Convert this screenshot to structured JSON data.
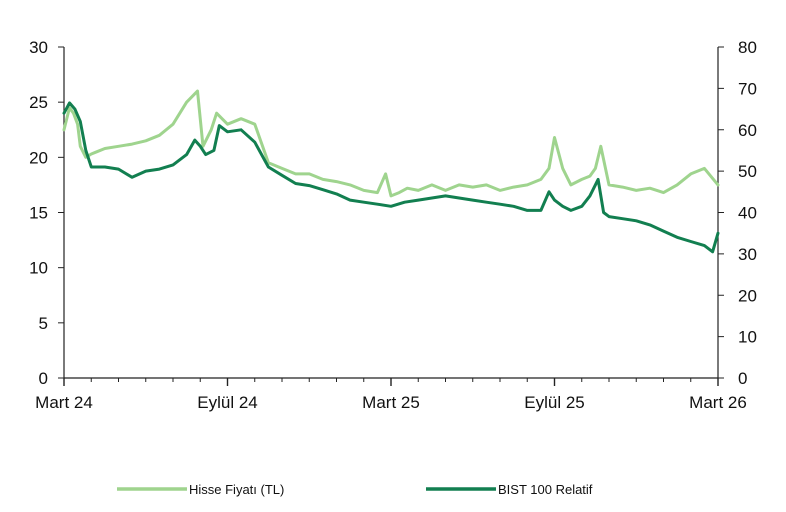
{
  "chart_data": {
    "type": "line",
    "title": "",
    "xlabel": "",
    "ylabel": "",
    "x_ticks": [
      "Mart 24",
      "Eylül 24",
      "Mart 25",
      "Eylül 25",
      "Mart 26"
    ],
    "y_left": {
      "ylim": [
        0,
        30
      ],
      "ticks": [
        "0",
        "5",
        "10",
        "15",
        "20",
        "25",
        "30"
      ]
    },
    "y_right": {
      "ylim": [
        0,
        80
      ],
      "ticks": [
        "0",
        "10",
        "20",
        "30",
        "40",
        "50",
        "60",
        "70",
        "80"
      ]
    },
    "grid": false,
    "legend_position": "bottom",
    "series": [
      {
        "name": "Hisse Fiyatı (TL)",
        "axis": "left",
        "color": "#9fd48e",
        "x": [
          0,
          0.2,
          0.35,
          0.5,
          0.6,
          0.8,
          1,
          1.2,
          1.5,
          2,
          2.5,
          3,
          3.5,
          4,
          4.5,
          4.9,
          5.1,
          5.4,
          5.6,
          6,
          6.5,
          7,
          7.5,
          8,
          8.5,
          9,
          9.5,
          10,
          10.5,
          11,
          11.5,
          11.8,
          12,
          12.3,
          12.6,
          13,
          13.5,
          14,
          14.5,
          15,
          15.5,
          16,
          16.5,
          17,
          17.5,
          17.8,
          18,
          18.3,
          18.6,
          19,
          19.3,
          19.5,
          19.7,
          20,
          20.5,
          21,
          21.5,
          22,
          22.5,
          23,
          23.5,
          24
        ],
        "values": [
          22.5,
          24.5,
          24,
          23,
          21,
          20,
          20.3,
          20.5,
          20.8,
          21.0,
          21.2,
          21.5,
          22.0,
          23.0,
          25.0,
          26.0,
          21.0,
          22.5,
          24.0,
          23.0,
          23.5,
          23.0,
          19.5,
          19.0,
          18.5,
          18.5,
          18.0,
          17.8,
          17.5,
          17.0,
          16.8,
          18.5,
          16.5,
          16.8,
          17.2,
          17.0,
          17.5,
          17.0,
          17.5,
          17.3,
          17.5,
          17.0,
          17.3,
          17.5,
          18.0,
          19.0,
          21.8,
          19.0,
          17.5,
          18.0,
          18.3,
          19.0,
          21.0,
          17.5,
          17.3,
          17.0,
          17.2,
          16.8,
          17.5,
          18.5,
          19.0,
          17.5
        ]
      },
      {
        "name": "BIST 100 Relatif",
        "axis": "right",
        "color": "#127f50",
        "x": [
          0,
          0.2,
          0.4,
          0.6,
          0.8,
          1,
          1.5,
          2,
          2.5,
          3,
          3.5,
          4,
          4.5,
          4.8,
          5,
          5.2,
          5.5,
          5.7,
          6,
          6.5,
          7,
          7.5,
          8,
          8.5,
          9,
          9.5,
          10,
          10.5,
          11,
          11.5,
          12,
          12.5,
          13,
          13.5,
          14,
          14.5,
          15,
          15.5,
          16,
          16.5,
          17,
          17.5,
          17.8,
          18,
          18.3,
          18.6,
          19,
          19.3,
          19.6,
          19.8,
          20,
          20.5,
          21,
          21.5,
          22,
          22.5,
          23,
          23.5,
          23.8,
          24
        ],
        "values": [
          64,
          66.5,
          65,
          62,
          55,
          51,
          51,
          50.5,
          48.5,
          50,
          50.5,
          51.5,
          54,
          57.5,
          56,
          54,
          55,
          61,
          59.5,
          60,
          57,
          51,
          49,
          47,
          46.5,
          45.5,
          44.5,
          43,
          42.5,
          42,
          41.5,
          42.5,
          43,
          43.5,
          44,
          43.5,
          43,
          42.5,
          42,
          41.5,
          40.5,
          40.5,
          45,
          43,
          41.5,
          40.5,
          41.5,
          44,
          48,
          40,
          39,
          38.5,
          38,
          37,
          35.5,
          34,
          33,
          32,
          30.5,
          35
        ]
      }
    ]
  }
}
